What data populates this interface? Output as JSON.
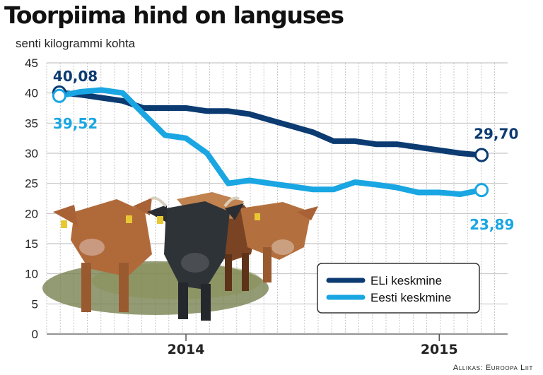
{
  "colors": {
    "eu": "#0c3b72",
    "est": "#19a6e2",
    "grid": "#b9b9b9",
    "axis": "#555555"
  },
  "chart_data": {
    "type": "line",
    "title": "Toorpiima hind on languses",
    "ylabel": "senti kilogrammi kohta",
    "ylim": [
      0,
      45
    ],
    "yticks": [
      "0",
      "5",
      "10",
      "15",
      "20",
      "25",
      "30",
      "35",
      "40",
      "45"
    ],
    "xlim": [
      2013.45,
      2015.27
    ],
    "xticks": [
      {
        "x": 2014.0,
        "label": "2014"
      },
      {
        "x": 2015.0,
        "label": "2015"
      }
    ],
    "grid": true,
    "legend": "bottom-right",
    "series": [
      {
        "name": "ELi keskmine",
        "color": "#0c3b72",
        "x": [
          2013.5,
          2013.583,
          2013.667,
          2013.75,
          2013.833,
          2013.917,
          2014.0,
          2014.083,
          2014.167,
          2014.25,
          2014.333,
          2014.417,
          2014.5,
          2014.583,
          2014.667,
          2014.75,
          2014.833,
          2014.917,
          2015.0,
          2015.083,
          2015.167
        ],
        "values": [
          40.08,
          39.7,
          39.2,
          38.7,
          37.5,
          37.5,
          37.5,
          37.0,
          37.0,
          36.5,
          35.5,
          34.5,
          33.5,
          32.0,
          32.0,
          31.5,
          31.5,
          31.0,
          30.5,
          30.0,
          29.7
        ]
      },
      {
        "name": "Eesti keskmine",
        "color": "#19a6e2",
        "x": [
          2013.5,
          2013.583,
          2013.667,
          2013.75,
          2013.833,
          2013.917,
          2014.0,
          2014.083,
          2014.167,
          2014.25,
          2014.333,
          2014.417,
          2014.5,
          2014.583,
          2014.667,
          2014.75,
          2014.833,
          2014.917,
          2015.0,
          2015.083,
          2015.167
        ],
        "values": [
          39.52,
          40.2,
          40.5,
          40.0,
          36.5,
          33.0,
          32.5,
          30.0,
          25.0,
          25.5,
          25.0,
          24.5,
          24.0,
          24.0,
          25.2,
          24.8,
          24.3,
          23.5,
          23.5,
          23.2,
          23.89
        ]
      }
    ],
    "annotations": [
      {
        "series": 0,
        "point": "first",
        "text": "40,08"
      },
      {
        "series": 1,
        "point": "first",
        "text": "39,52"
      },
      {
        "series": 0,
        "point": "last",
        "text": "29,70"
      },
      {
        "series": 1,
        "point": "last",
        "text": "23,89"
      }
    ],
    "source": "Allikas: Euroopa Liit"
  }
}
